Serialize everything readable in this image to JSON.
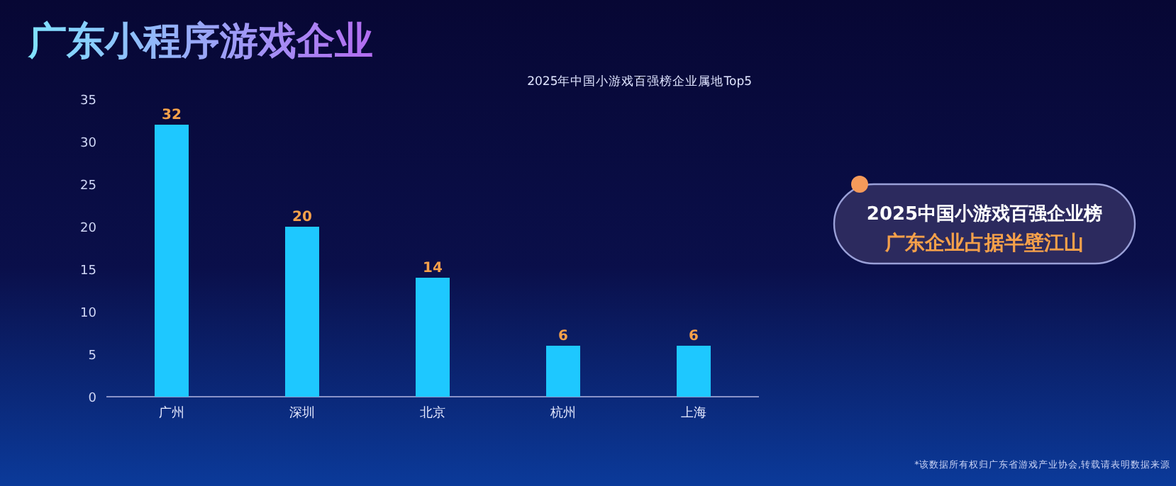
{
  "chart_data": {
    "type": "bar",
    "title": "广东小程序游戏企业",
    "subtitle": "2025年中国小游戏百强榜企业属地Top5",
    "categories": [
      "广州",
      "深圳",
      "北京",
      "杭州",
      "上海"
    ],
    "values": [
      32,
      20,
      14,
      6,
      6
    ],
    "color": "#1ec8ff",
    "ylim": [
      0,
      35
    ],
    "yticks": [
      0,
      5,
      10,
      15,
      20,
      25,
      30,
      35
    ],
    "data_labels": true,
    "annotations": [
      "2025中国小游戏百强企业榜",
      "广东企业占据半壁江山",
      "*该数据所有权归广东省游戏产业协会,转载请表明数据来源"
    ]
  }
}
